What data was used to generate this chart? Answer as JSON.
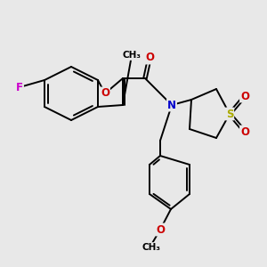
{
  "bg_color": "#e8e8e8",
  "atom_colors": {
    "C": "#000000",
    "N": "#0000cc",
    "O": "#cc0000",
    "F": "#cc00cc",
    "S": "#aaaa00",
    "H": "#000000"
  },
  "bond_color": "#000000",
  "bond_width": 1.4,
  "font_size_atom": 8.5
}
